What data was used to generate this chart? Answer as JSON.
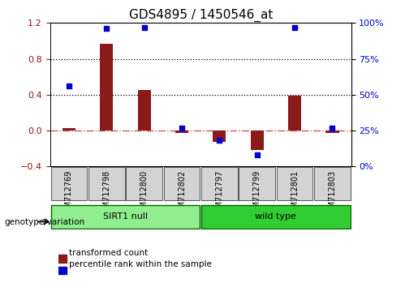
{
  "title": "GDS4895 / 1450546_at",
  "samples": [
    "GSM712769",
    "GSM712798",
    "GSM712800",
    "GSM712802",
    "GSM712797",
    "GSM712799",
    "GSM712801",
    "GSM712803"
  ],
  "transformed_count": [
    0.03,
    0.97,
    0.45,
    -0.03,
    -0.13,
    -0.22,
    0.39,
    -0.03
  ],
  "percentile_rank": [
    0.56,
    0.96,
    0.97,
    0.27,
    0.18,
    0.08,
    0.97,
    0.27
  ],
  "groups": [
    {
      "label": "SIRT1 null",
      "start": 0,
      "end": 4,
      "color": "#90EE90"
    },
    {
      "label": "wild type",
      "start": 4,
      "end": 8,
      "color": "#32CD32"
    }
  ],
  "bar_color": "#8B1A1A",
  "dot_color": "#0000CD",
  "ylim_left": [
    -0.4,
    1.2
  ],
  "ylim_right": [
    0,
    100
  ],
  "yticks_left": [
    -0.4,
    0,
    0.4,
    0.8,
    1.2
  ],
  "yticks_right": [
    0,
    25,
    50,
    75,
    100
  ],
  "ytick_labels_right": [
    "0%",
    "25%",
    "50%",
    "75%",
    "100%"
  ],
  "hlines": [
    0.4,
    0.8
  ],
  "zero_line_color": "#CD5C5C",
  "grid_color": "#000000",
  "bg_color": "#FFFFFF",
  "legend_transformed": "transformed count",
  "legend_percentile": "percentile rank within the sample",
  "genotype_label": "genotype/variation",
  "tick_label_fontsize": 7,
  "title_fontsize": 11
}
